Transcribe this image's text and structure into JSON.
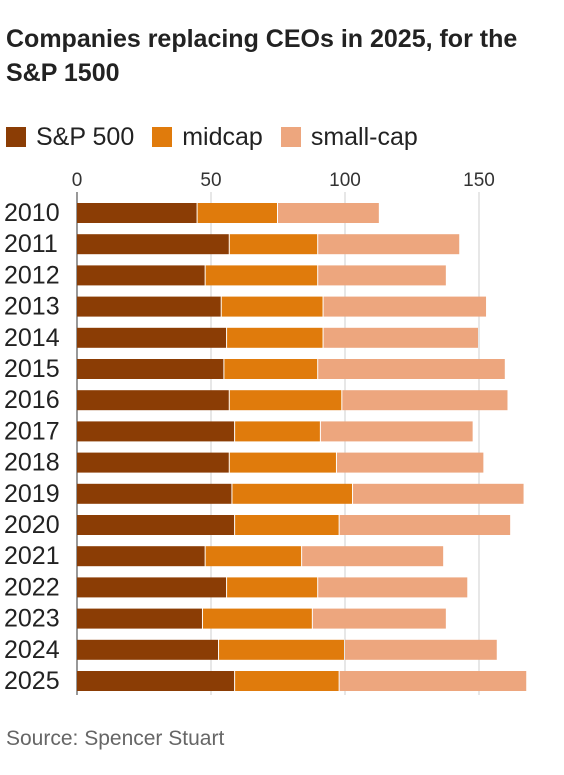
{
  "title": "Companies replacing CEOs in 2025, for the S&P 1500",
  "source": "Source: Spencer Stuart",
  "colors": {
    "sp500": "#8B3D05",
    "midcap": "#E07B0C",
    "smallcap": "#EDA67E",
    "grid": "#cfcfcf"
  },
  "legend": [
    {
      "label": "S&P 500",
      "color": "#8B3D05"
    },
    {
      "label": "midcap",
      "color": "#E07B0C"
    },
    {
      "label": "small-cap",
      "color": "#EDA67E"
    }
  ],
  "chart_data": {
    "type": "bar",
    "orientation": "horizontal",
    "stacked": true,
    "title": "Companies replacing CEOs in 2025, for the S&P 1500",
    "categories": [
      "2010",
      "2011",
      "2012",
      "2013",
      "2014",
      "2015",
      "2016",
      "2017",
      "2018",
      "2019",
      "2020",
      "2021",
      "2022",
      "2023",
      "2024",
      "2025"
    ],
    "series": [
      {
        "name": "S&P 500",
        "color": "#8B3D05",
        "values": [
          45,
          57,
          48,
          54,
          56,
          55,
          57,
          59,
          57,
          58,
          59,
          48,
          56,
          47,
          53,
          59
        ]
      },
      {
        "name": "midcap",
        "color": "#E07B0C",
        "values": [
          30,
          33,
          42,
          38,
          36,
          35,
          42,
          32,
          40,
          45,
          39,
          36,
          34,
          41,
          47,
          39
        ]
      },
      {
        "name": "small-cap",
        "color": "#EDA67E",
        "values": [
          38,
          53,
          48,
          61,
          58,
          70,
          62,
          57,
          55,
          64,
          64,
          53,
          56,
          50,
          57,
          70
        ]
      }
    ],
    "xlim": [
      0,
      170
    ],
    "xticks": [
      0,
      50,
      100,
      150
    ],
    "grid": true,
    "legend_position": "top-left"
  }
}
